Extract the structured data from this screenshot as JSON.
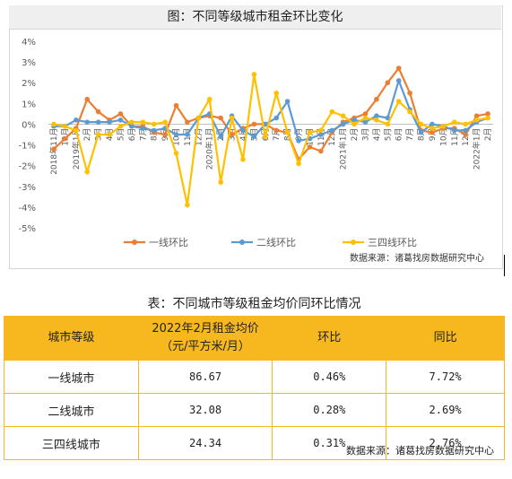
{
  "chart_data": {
    "type": "line",
    "title": "图：不同等级城市租金环比变化",
    "source": "数据来源：诸葛找房数据研究中心",
    "y_tick_labels": [
      "4%",
      "3%",
      "2%",
      "1%",
      "0%",
      "-1%",
      "-2%",
      "-3%",
      "-4%",
      "-5%"
    ],
    "ylim": [
      -5,
      4
    ],
    "x_labels": [
      "2018年11月",
      "12月",
      "2019年1月",
      "2月",
      "3月",
      "4月",
      "5月",
      "6月",
      "7月",
      "8月",
      "9月",
      "10月",
      "11月",
      "12月",
      "2020年1月",
      "2月",
      "3月",
      "4月",
      "5月",
      "6月",
      "7月",
      "8月",
      "9月",
      "10月",
      "11月",
      "12月",
      "2021年1月",
      "2月",
      "3月",
      "4月",
      "5月",
      "6月",
      "7月",
      "8月",
      "9月",
      "10月",
      "11月",
      "12月",
      "2022年1月",
      "2月"
    ],
    "legend_position": "bottom",
    "series": [
      {
        "name": "一线环比",
        "color": "#ed7d31",
        "values": [
          -1.2,
          -0.7,
          -0.2,
          1.2,
          0.6,
          0.2,
          0.5,
          -0.1,
          -0.1,
          -0.4,
          -0.5,
          0.9,
          0.1,
          0.3,
          0.4,
          0.3,
          -0.5,
          -0.2,
          0.0,
          0.0,
          -0.3,
          -0.4,
          -1.7,
          -1.1,
          -1.3,
          -0.4,
          0.1,
          0.3,
          0.5,
          1.2,
          2.0,
          2.7,
          1.5,
          -0.3,
          -0.4,
          -0.2,
          -0.2,
          -0.5,
          0.4,
          0.5
        ]
      },
      {
        "name": "二线环比",
        "color": "#5b9bd5",
        "values": [
          -0.1,
          -0.1,
          0.2,
          0.1,
          0.1,
          0.1,
          0.2,
          -0.1,
          -0.2,
          -0.3,
          -0.2,
          -0.5,
          -0.5,
          0.3,
          0.5,
          -0.6,
          0.4,
          -0.3,
          -0.6,
          0.0,
          0.3,
          1.1,
          -0.8,
          -0.7,
          -0.5,
          -0.3,
          0.0,
          0.2,
          0.1,
          0.4,
          0.3,
          2.1,
          0.7,
          -0.4,
          0.0,
          -0.1,
          -0.3,
          -0.3,
          0.1,
          0.3
        ]
      },
      {
        "name": "三四线环比",
        "color": "#ffc000",
        "values": [
          0.0,
          -0.1,
          -0.3,
          -2.3,
          -0.5,
          -0.5,
          -0.1,
          0.1,
          0.1,
          0.0,
          0.1,
          -1.4,
          -3.9,
          0.3,
          1.2,
          -2.8,
          0.3,
          -1.7,
          2.4,
          -0.6,
          1.5,
          -0.4,
          -1.9,
          -0.4,
          -0.3,
          0.6,
          0.4,
          0.0,
          0.3,
          0.2,
          0.0,
          1.1,
          0.6,
          0.0,
          -0.2,
          -0.1,
          0.1,
          0.0,
          0.2,
          0.3
        ]
      }
    ]
  },
  "table": {
    "title": "表：不同城市等级租金均价同环比情况",
    "headers": {
      "col1": "城市等级",
      "col2_line1": "2022年2月租金均价",
      "col2_line2": "（元/平方米/月）",
      "col3": "环比",
      "col4": "同比"
    },
    "rows": [
      {
        "level": "一线城市",
        "price": "86.67",
        "mom": "0.46%",
        "yoy": "7.72%"
      },
      {
        "level": "二线城市",
        "price": "32.08",
        "mom": "0.28%",
        "yoy": "2.69%"
      },
      {
        "level": "三四线城市",
        "price": "24.34",
        "mom": "0.31%",
        "yoy": "2.76%"
      }
    ],
    "source": "数据来源：诸葛找房数据研究中心"
  },
  "colors": {
    "header_bg": "#f7b81f",
    "border": "#f7b81f"
  }
}
